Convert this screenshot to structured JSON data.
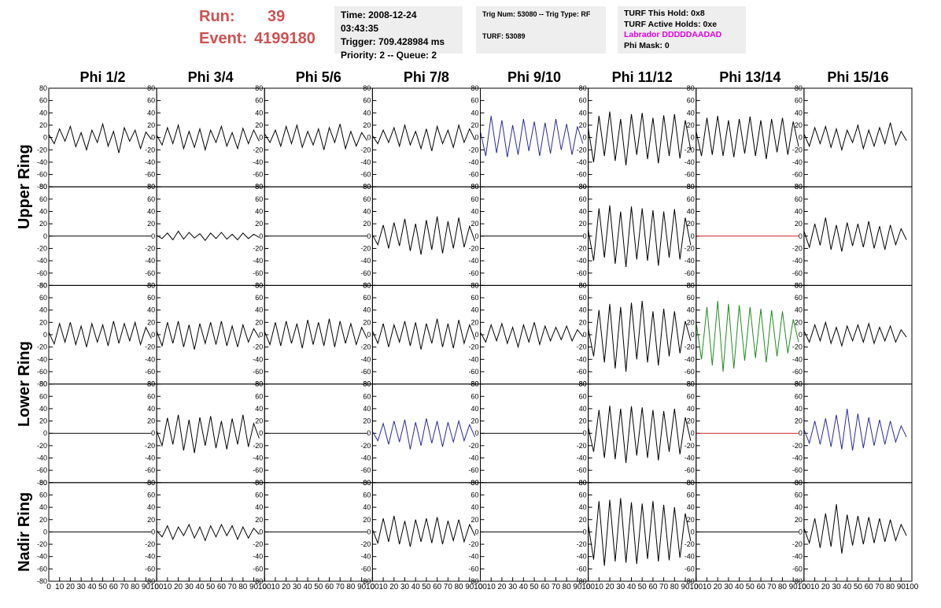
{
  "header": {
    "run_label": "Run:",
    "run": "39",
    "event_label": "Event:",
    "event": "4199180",
    "box1": [
      "Time: 2008-12-24 03:43:35",
      "Trigger: 709.428984 ms",
      "Priority: 2 -- Queue: 2"
    ],
    "box2": [
      "Trig Num: 53080 -- Trig Type: RF",
      "TURF: 53089"
    ],
    "box3": [
      "TURF This Hold: 0x8",
      "TURF Active Holds: 0xe",
      "Labrador DDDDDAADAD",
      "Phi Mask: 0"
    ]
  },
  "chart_data": {
    "type": "line",
    "columns": [
      "Phi 1/2",
      "Phi 3/4",
      "Phi 5/6",
      "Phi 7/8",
      "Phi 9/10",
      "Phi 11/12",
      "Phi 13/14",
      "Phi 15/16"
    ],
    "ring_labels": [
      "Upper Ring",
      "Lower Ring",
      "Nadir Ring"
    ],
    "xlim": [
      0,
      100
    ],
    "xticks": [
      0,
      10,
      20,
      30,
      40,
      50,
      60,
      70,
      80,
      90,
      100
    ],
    "ylim": [
      -80,
      80
    ],
    "yticks": [
      -80,
      -60,
      -40,
      -20,
      0,
      20,
      40,
      60,
      80
    ],
    "x": [
      0,
      5,
      10,
      15,
      20,
      25,
      30,
      35,
      40,
      45,
      50,
      55,
      60,
      65,
      70,
      75,
      80,
      85,
      90,
      95
    ],
    "panels": [
      [
        {
          "color": "#000000",
          "values": [
            5,
            -10,
            14,
            -6,
            18,
            -15,
            8,
            -20,
            12,
            -8,
            22,
            -14,
            10,
            -25,
            16,
            -6,
            12,
            -18,
            9,
            -3
          ]
        },
        {
          "color": "#000000",
          "values": [
            4,
            -12,
            16,
            -10,
            20,
            -18,
            10,
            -16,
            14,
            -20,
            12,
            -8,
            18,
            -14,
            8,
            -18,
            15,
            -10,
            12,
            -6
          ]
        },
        {
          "color": "#000000",
          "values": [
            6,
            -8,
            12,
            -14,
            18,
            -10,
            20,
            -16,
            10,
            -12,
            14,
            -20,
            16,
            -8,
            22,
            -18,
            10,
            -14,
            8,
            -5
          ]
        },
        {
          "color": "#000000",
          "values": [
            3,
            -10,
            12,
            -8,
            16,
            -14,
            20,
            -12,
            10,
            -18,
            14,
            -22,
            18,
            -10,
            12,
            -16,
            20,
            -8,
            14,
            -4
          ]
        },
        {
          "color": "#2a2aa0",
          "values": [
            10,
            -30,
            35,
            -25,
            28,
            -32,
            20,
            -28,
            30,
            -22,
            26,
            -30,
            24,
            -26,
            30,
            -20,
            22,
            -28,
            18,
            -10
          ]
        },
        {
          "color": "#000000",
          "values": [
            15,
            -40,
            35,
            -30,
            42,
            -38,
            30,
            -45,
            38,
            -28,
            40,
            -35,
            32,
            -42,
            36,
            -30,
            38,
            -34,
            28,
            -20
          ]
        },
        {
          "color": "#000000",
          "values": [
            10,
            -30,
            32,
            -28,
            35,
            -30,
            28,
            -32,
            30,
            -26,
            34,
            -30,
            28,
            -35,
            30,
            -24,
            32,
            -28,
            26,
            -15
          ]
        },
        {
          "color": "#000000",
          "values": [
            6,
            -14,
            16,
            -10,
            18,
            -16,
            14,
            -20,
            12,
            -8,
            20,
            -18,
            12,
            -14,
            16,
            -10,
            24,
            -12,
            10,
            -5
          ]
        }
      ],
      [
        {
          "color": "#000000",
          "values": [
            0,
            0,
            0,
            0,
            0,
            0,
            0,
            0,
            0,
            0,
            0,
            0,
            0,
            0,
            0,
            0,
            0,
            0,
            0,
            0
          ]
        },
        {
          "color": "#000000",
          "values": [
            1,
            -4,
            5,
            -6,
            8,
            -5,
            6,
            -3,
            4,
            -7,
            5,
            -4,
            6,
            -5,
            3,
            -6,
            5,
            -4,
            3,
            -2
          ]
        },
        {
          "color": "#000000",
          "values": [
            0,
            0,
            0,
            0,
            0,
            0,
            0,
            0,
            0,
            0,
            0,
            0,
            0,
            0,
            0,
            0,
            0,
            0,
            0,
            0
          ]
        },
        {
          "color": "#000000",
          "values": [
            2,
            -14,
            18,
            -20,
            22,
            -16,
            28,
            -24,
            20,
            -30,
            26,
            -22,
            32,
            -28,
            24,
            -20,
            30,
            -18,
            16,
            -8
          ]
        },
        {
          "color": "#000000",
          "values": [
            0,
            0,
            0,
            0,
            0,
            0,
            0,
            0,
            0,
            0,
            0,
            0,
            0,
            0,
            0,
            0,
            0,
            0,
            0,
            0
          ]
        },
        {
          "color": "#000000",
          "values": [
            10,
            -40,
            45,
            -35,
            50,
            -45,
            40,
            -50,
            48,
            -38,
            45,
            -40,
            42,
            -48,
            40,
            -35,
            44,
            -38,
            30,
            -15
          ]
        },
        {
          "color": "#cc2222",
          "values": [
            0,
            0,
            0,
            0,
            0,
            0,
            0,
            0,
            0,
            0,
            0,
            0,
            0,
            0,
            0,
            0,
            0,
            0,
            0,
            0
          ]
        },
        {
          "color": "#000000",
          "values": [
            8,
            -18,
            20,
            -15,
            30,
            -22,
            18,
            -25,
            22,
            -16,
            20,
            -18,
            24,
            -20,
            16,
            -22,
            18,
            -14,
            12,
            -6
          ]
        }
      ],
      [
        {
          "color": "#000000",
          "values": [
            4,
            -15,
            18,
            -12,
            20,
            -16,
            14,
            -20,
            18,
            -12,
            16,
            -18,
            22,
            -14,
            18,
            -10,
            20,
            -16,
            12,
            -6
          ]
        },
        {
          "color": "#000000",
          "values": [
            6,
            -18,
            20,
            -14,
            22,
            -20,
            16,
            -24,
            18,
            -14,
            20,
            -16,
            22,
            -18,
            14,
            -20,
            16,
            -12,
            10,
            -5
          ]
        },
        {
          "color": "#000000",
          "values": [
            5,
            -16,
            20,
            -18,
            22,
            -14,
            18,
            -22,
            24,
            -16,
            20,
            -18,
            26,
            -20,
            22,
            -14,
            18,
            -16,
            12,
            -6
          ]
        },
        {
          "color": "#000000",
          "values": [
            6,
            -14,
            18,
            -20,
            16,
            -12,
            22,
            -18,
            20,
            -24,
            18,
            -14,
            26,
            -20,
            18,
            -22,
            24,
            -14,
            16,
            -8
          ]
        },
        {
          "color": "#000000",
          "values": [
            4,
            -12,
            16,
            -10,
            18,
            -14,
            12,
            -20,
            16,
            -12,
            20,
            -16,
            14,
            -10,
            12,
            -8,
            14,
            -10,
            8,
            -3
          ]
        },
        {
          "color": "#000000",
          "values": [
            10,
            -35,
            40,
            -45,
            50,
            -55,
            45,
            -60,
            52,
            -40,
            55,
            -45,
            38,
            -50,
            42,
            -35,
            38,
            -30,
            22,
            -10
          ]
        },
        {
          "color": "#1f8c1f",
          "values": [
            20,
            -40,
            45,
            -50,
            55,
            -60,
            50,
            -55,
            48,
            -42,
            45,
            -38,
            42,
            -45,
            40,
            -35,
            38,
            -30,
            25,
            -12
          ]
        },
        {
          "color": "#000000",
          "values": [
            6,
            -12,
            16,
            -10,
            20,
            -14,
            12,
            -18,
            14,
            -10,
            16,
            -12,
            18,
            -14,
            12,
            -10,
            14,
            -12,
            8,
            -4
          ]
        }
      ],
      [
        {
          "color": "#000000",
          "values": [
            0,
            0,
            0,
            0,
            0,
            0,
            0,
            0,
            0,
            0,
            0,
            0,
            0,
            0,
            0,
            0,
            0,
            0,
            0,
            0
          ]
        },
        {
          "color": "#000000",
          "values": [
            4,
            -20,
            25,
            -18,
            30,
            -28,
            22,
            -32,
            26,
            -20,
            28,
            -24,
            20,
            -26,
            24,
            -18,
            30,
            -22,
            16,
            -8
          ]
        },
        {
          "color": "#000000",
          "values": [
            0,
            0,
            0,
            0,
            0,
            0,
            0,
            0,
            0,
            0,
            0,
            0,
            0,
            0,
            0,
            0,
            0,
            0,
            0,
            0
          ]
        },
        {
          "color": "#2a2aa0",
          "values": [
            3,
            -12,
            16,
            -18,
            20,
            -14,
            22,
            -26,
            18,
            -20,
            24,
            -16,
            20,
            -22,
            18,
            -14,
            20,
            -12,
            14,
            -6
          ]
        },
        {
          "color": "#000000",
          "values": [
            0,
            0,
            0,
            0,
            0,
            0,
            0,
            0,
            0,
            0,
            0,
            0,
            0,
            0,
            0,
            0,
            0,
            0,
            0,
            0
          ]
        },
        {
          "color": "#000000",
          "values": [
            10,
            -30,
            38,
            -40,
            45,
            -42,
            40,
            -48,
            44,
            -36,
            42,
            -40,
            38,
            -44,
            36,
            -30,
            40,
            -34,
            26,
            -12
          ]
        },
        {
          "color": "#cc2222",
          "values": [
            0,
            0,
            0,
            0,
            0,
            0,
            0,
            0,
            0,
            0,
            0,
            0,
            0,
            0,
            0,
            0,
            0,
            0,
            0,
            0
          ]
        },
        {
          "color": "#2a2aa0",
          "values": [
            6,
            -16,
            20,
            -18,
            24,
            -22,
            30,
            -26,
            40,
            -28,
            32,
            -24,
            26,
            -20,
            22,
            -18,
            20,
            -14,
            12,
            -6
          ]
        }
      ],
      [
        {
          "color": "#000000",
          "values": [
            0,
            0,
            0,
            0,
            0,
            0,
            0,
            0,
            0,
            0,
            0,
            0,
            0,
            0,
            0,
            0,
            0,
            0,
            0,
            0
          ]
        },
        {
          "color": "#000000",
          "values": [
            2,
            -8,
            10,
            -12,
            8,
            -6,
            12,
            -10,
            8,
            -14,
            10,
            -8,
            12,
            -6,
            10,
            -12,
            8,
            -10,
            6,
            -4
          ]
        },
        {
          "color": "#000000",
          "values": [
            0,
            0,
            0,
            0,
            0,
            0,
            0,
            0,
            0,
            0,
            0,
            0,
            0,
            0,
            0,
            0,
            0,
            0,
            0,
            0
          ]
        },
        {
          "color": "#000000",
          "values": [
            4,
            -18,
            22,
            -16,
            26,
            -20,
            18,
            -24,
            20,
            -16,
            22,
            -18,
            24,
            -20,
            18,
            -14,
            20,
            -16,
            12,
            -6
          ]
        },
        {
          "color": "#000000",
          "values": [
            0,
            0,
            0,
            0,
            0,
            0,
            0,
            0,
            0,
            0,
            0,
            0,
            0,
            0,
            0,
            0,
            0,
            0,
            0,
            0
          ]
        },
        {
          "color": "#000000",
          "values": [
            12,
            -45,
            50,
            -55,
            52,
            -48,
            55,
            -50,
            48,
            -52,
            46,
            -44,
            50,
            -48,
            44,
            -46,
            40,
            -42,
            30,
            -15
          ]
        },
        {
          "color": "#000000",
          "values": [
            0,
            0,
            0,
            0,
            0,
            0,
            0,
            0,
            0,
            0,
            0,
            0,
            0,
            0,
            0,
            0,
            0,
            0,
            0,
            0
          ]
        },
        {
          "color": "#000000",
          "values": [
            6,
            -18,
            22,
            -26,
            30,
            -24,
            45,
            -35,
            28,
            -22,
            26,
            -20,
            24,
            -18,
            22,
            -16,
            20,
            -14,
            12,
            -6
          ]
        }
      ]
    ]
  }
}
